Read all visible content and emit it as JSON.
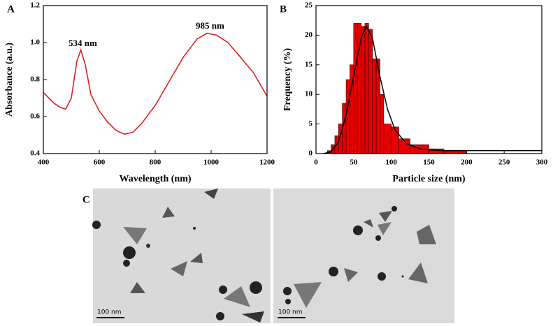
{
  "chart_data": [
    {
      "type": "line",
      "panel_label": "A",
      "x_label": "Wavelength (nm)",
      "y_label": "Absorbance (a.u.)",
      "annotations": [
        "534 nm",
        "985 nm"
      ],
      "color": "#e02020",
      "x": [
        400,
        420,
        440,
        460,
        480,
        500,
        520,
        534,
        550,
        570,
        600,
        630,
        660,
        690,
        720,
        750,
        800,
        850,
        900,
        950,
        985,
        1020,
        1060,
        1100,
        1150,
        1200
      ],
      "values": [
        0.73,
        0.7,
        0.67,
        0.65,
        0.64,
        0.7,
        0.9,
        0.96,
        0.88,
        0.72,
        0.63,
        0.57,
        0.525,
        0.505,
        0.515,
        0.56,
        0.66,
        0.79,
        0.92,
        1.02,
        1.05,
        1.04,
        1.0,
        0.93,
        0.84,
        0.71
      ],
      "xlim": [
        400,
        1200
      ],
      "xticks": [
        400,
        600,
        800,
        1000,
        1200
      ],
      "ylim": [
        0.4,
        1.2
      ],
      "yticks": [
        0.4,
        0.6,
        0.8,
        {
          "value": 1,
          "label": "1.0"
        },
        1.2
      ]
    },
    {
      "type": "histogram",
      "panel_label": "B",
      "x_label": "Particle size (nm)",
      "y_label": "Frequency (%)",
      "color": "#e60000",
      "bins": [
        15,
        20,
        25,
        30,
        35,
        40,
        45,
        50,
        55,
        60,
        65,
        70,
        75,
        80,
        85,
        90,
        100,
        110,
        125,
        150,
        170,
        200
      ],
      "counts": [
        0.5,
        1.5,
        3,
        5,
        8.5,
        12.5,
        15,
        22,
        22,
        21.5,
        22,
        21,
        16,
        16,
        10,
        5,
        4.5,
        2.5,
        1.5,
        0.8,
        0.5
      ],
      "fit": {
        "color": "#000000",
        "x": [
          10,
          20,
          30,
          40,
          50,
          60,
          67,
          75,
          85,
          95,
          105,
          120,
          140,
          170,
          200,
          300
        ],
        "y": [
          0,
          0.3,
          2,
          6.5,
          13,
          19.5,
          21.5,
          19.5,
          13,
          7.5,
          4,
          1.7,
          0.7,
          0.5,
          0.5,
          0.5
        ]
      },
      "xlim": [
        0,
        300
      ],
      "xticks": [
        0,
        50,
        100,
        150,
        200,
        250,
        300
      ],
      "ylim": [
        0,
        25
      ],
      "yticks": [
        0,
        5,
        10,
        15,
        20,
        25
      ]
    }
  ],
  "panel_c": {
    "label": "C",
    "scale_bars": [
      "100 nm",
      "100 nm"
    ]
  }
}
